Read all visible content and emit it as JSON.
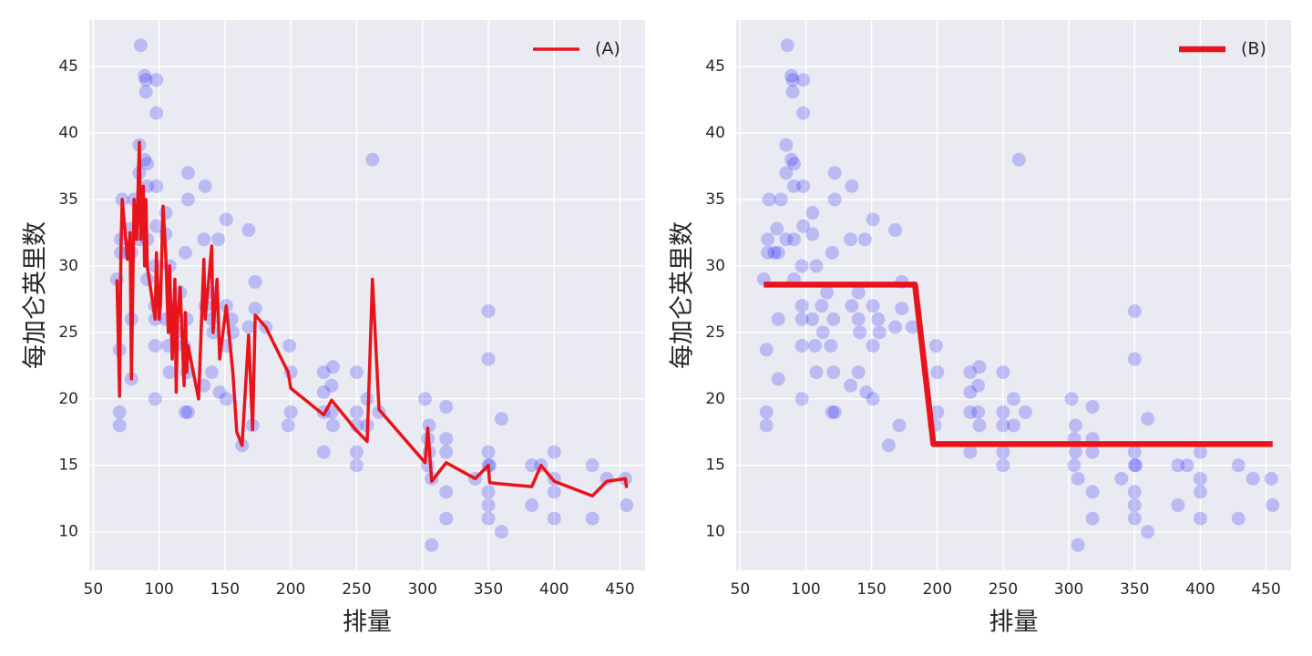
{
  "chart_data": [
    {
      "type": "scatter",
      "xlabel": "排量",
      "ylabel": "每加仑英里数",
      "xlim": [
        47,
        469
      ],
      "ylim": [
        7.1,
        48.5
      ],
      "xticks": [
        50,
        100,
        150,
        200,
        250,
        300,
        350,
        400,
        450
      ],
      "yticks": [
        10,
        15,
        20,
        25,
        30,
        35,
        40,
        45
      ],
      "grid": true,
      "legend": "upper right",
      "series": [
        {
          "type": "scatter",
          "color": "#0000ff",
          "x": [
            68,
            70,
            70,
            70,
            71,
            71,
            72,
            76,
            78,
            79,
            79,
            79,
            81,
            85,
            85,
            85,
            86,
            89,
            89,
            90,
            90,
            91,
            91,
            91,
            91,
            97,
            97,
            97,
            97,
            97,
            98,
            98,
            98,
            98,
            105,
            105,
            105,
            107,
            108,
            108,
            112,
            113,
            116,
            119,
            120,
            120,
            121,
            121,
            122,
            122,
            122,
            134,
            134,
            135,
            135,
            140,
            140,
            140,
            141,
            145,
            146,
            151,
            151,
            151,
            151,
            155,
            156,
            163,
            168,
            168,
            171,
            173,
            173,
            181,
            198,
            199,
            200,
            200,
            225,
            225,
            225,
            225,
            231,
            231,
            232,
            232,
            250,
            250,
            250,
            250,
            250,
            258,
            258,
            262,
            267,
            302,
            304,
            304,
            305,
            305,
            307,
            307,
            318,
            318,
            318,
            318,
            318,
            340,
            350,
            350,
            350,
            350,
            350,
            350,
            350,
            351,
            360,
            360,
            383,
            383,
            390,
            400,
            400,
            400,
            400,
            429,
            429,
            440,
            454,
            455
          ],
          "values": [
            29,
            23.7,
            19,
            18,
            31,
            32,
            35,
            31,
            32.8,
            31,
            26,
            21.5,
            35,
            32,
            39.1,
            37,
            46.6,
            38,
            44.3,
            43.1,
            44,
            37.7,
            36,
            32,
            29,
            26,
            30,
            27,
            24,
            20,
            33,
            36,
            41.5,
            44,
            34,
            32.4,
            26,
            24,
            30,
            22,
            27,
            25,
            28,
            24,
            19,
            31,
            26,
            22,
            35,
            37,
            19,
            32,
            21,
            27,
            36,
            22,
            28,
            26,
            25,
            32,
            20.5,
            33.5,
            24,
            27,
            20,
            26,
            25,
            16.5,
            25.4,
            32.7,
            18,
            28.8,
            26.8,
            25.4,
            18,
            24,
            22,
            19,
            20.5,
            19,
            16,
            22,
            21,
            19,
            22.4,
            18,
            16,
            18,
            19,
            15,
            22,
            20,
            18,
            38,
            19,
            20,
            15,
            17,
            18,
            16,
            9,
            14,
            13,
            16,
            19.4,
            17,
            11,
            14,
            13,
            15,
            16,
            12,
            11,
            23,
            26.6,
            15,
            18.5,
            10,
            12,
            15,
            15,
            13,
            16,
            14,
            11,
            15,
            11,
            14,
            14,
            12
          ]
        },
        {
          "type": "line",
          "name": "(A)",
          "color": "#e8141b",
          "width": 3.5,
          "x": [
            68,
            70,
            71,
            72,
            76,
            78,
            79,
            81,
            83,
            85,
            86,
            88,
            89,
            90,
            91,
            97,
            98,
            100,
            101,
            103,
            105,
            107,
            108,
            110,
            112,
            113,
            114,
            116,
            119,
            120,
            121,
            122,
            130,
            134,
            135,
            140,
            141,
            144,
            146,
            151,
            156,
            159,
            163,
            168,
            171,
            173,
            181,
            198,
            200,
            225,
            231,
            250,
            258,
            262,
            267,
            302,
            304,
            307,
            318,
            340,
            350,
            351,
            360,
            383,
            390,
            400,
            429,
            440,
            454,
            455
          ],
          "values": [
            29,
            20.2,
            31,
            35,
            30.5,
            32.5,
            21.5,
            35,
            32,
            39.3,
            32,
            36,
            30,
            35,
            30,
            26,
            31,
            26,
            27,
            34.5,
            31,
            25,
            30,
            23,
            29,
            20.5,
            26,
            28.4,
            21,
            26.5,
            22,
            24,
            20,
            30.5,
            26,
            31.5,
            25,
            29,
            23,
            27,
            22,
            17.5,
            16.5,
            24.8,
            17.7,
            26.3,
            25.4,
            22,
            20.8,
            18.8,
            19.9,
            17.6,
            16.8,
            29,
            19.2,
            15.2,
            17.8,
            13.8,
            15.2,
            14,
            15,
            13.7,
            13.6,
            13.4,
            15,
            13.8,
            12.7,
            13.8,
            14,
            13.3
          ]
        }
      ]
    },
    {
      "type": "scatter",
      "xlabel": "排量",
      "ylabel": "每加仑英里数",
      "xlim": [
        47,
        469
      ],
      "ylim": [
        7.1,
        48.5
      ],
      "xticks": [
        50,
        100,
        150,
        200,
        250,
        300,
        350,
        400,
        450
      ],
      "yticks": [
        10,
        15,
        20,
        25,
        30,
        35,
        40,
        45
      ],
      "grid": true,
      "legend": "upper right",
      "series": [
        {
          "type": "scatter",
          "color": "#0000ff",
          "x": [
            68,
            70,
            70,
            70,
            71,
            71,
            72,
            76,
            78,
            79,
            79,
            79,
            81,
            85,
            85,
            85,
            86,
            89,
            89,
            90,
            90,
            91,
            91,
            91,
            91,
            97,
            97,
            97,
            97,
            97,
            98,
            98,
            98,
            98,
            105,
            105,
            105,
            107,
            108,
            108,
            112,
            113,
            116,
            119,
            120,
            120,
            121,
            121,
            122,
            122,
            122,
            134,
            134,
            135,
            135,
            140,
            140,
            140,
            141,
            145,
            146,
            151,
            151,
            151,
            151,
            155,
            156,
            163,
            168,
            168,
            171,
            173,
            173,
            181,
            198,
            199,
            200,
            200,
            225,
            225,
            225,
            225,
            231,
            231,
            232,
            232,
            250,
            250,
            250,
            250,
            250,
            258,
            258,
            262,
            267,
            302,
            304,
            304,
            305,
            305,
            307,
            307,
            318,
            318,
            318,
            318,
            318,
            340,
            350,
            350,
            350,
            350,
            350,
            350,
            350,
            351,
            360,
            360,
            383,
            383,
            390,
            400,
            400,
            400,
            400,
            429,
            429,
            440,
            454,
            455
          ],
          "values": [
            29,
            23.7,
            19,
            18,
            31,
            32,
            35,
            31,
            32.8,
            31,
            26,
            21.5,
            35,
            32,
            39.1,
            37,
            46.6,
            38,
            44.3,
            43.1,
            44,
            37.7,
            36,
            32,
            29,
            26,
            30,
            27,
            24,
            20,
            33,
            36,
            41.5,
            44,
            34,
            32.4,
            26,
            24,
            30,
            22,
            27,
            25,
            28,
            24,
            19,
            31,
            26,
            22,
            35,
            37,
            19,
            32,
            21,
            27,
            36,
            22,
            28,
            26,
            25,
            32,
            20.5,
            33.5,
            24,
            27,
            20,
            26,
            25,
            16.5,
            25.4,
            32.7,
            18,
            28.8,
            26.8,
            25.4,
            18,
            24,
            22,
            19,
            20.5,
            19,
            16,
            22,
            21,
            19,
            22.4,
            18,
            16,
            18,
            19,
            15,
            22,
            20,
            18,
            38,
            19,
            20,
            15,
            17,
            18,
            16,
            9,
            14,
            13,
            16,
            19.4,
            17,
            11,
            14,
            13,
            15,
            16,
            12,
            11,
            23,
            26.6,
            15,
            18.5,
            10,
            12,
            15,
            15,
            13,
            16,
            14,
            11,
            15,
            11,
            14,
            14,
            12
          ]
        },
        {
          "type": "line",
          "name": "(B)",
          "color": "#e8141b",
          "width": 6.5,
          "x": [
            68,
            183,
            197,
            455
          ],
          "values": [
            28.6,
            28.6,
            16.6,
            16.6
          ]
        }
      ]
    }
  ]
}
